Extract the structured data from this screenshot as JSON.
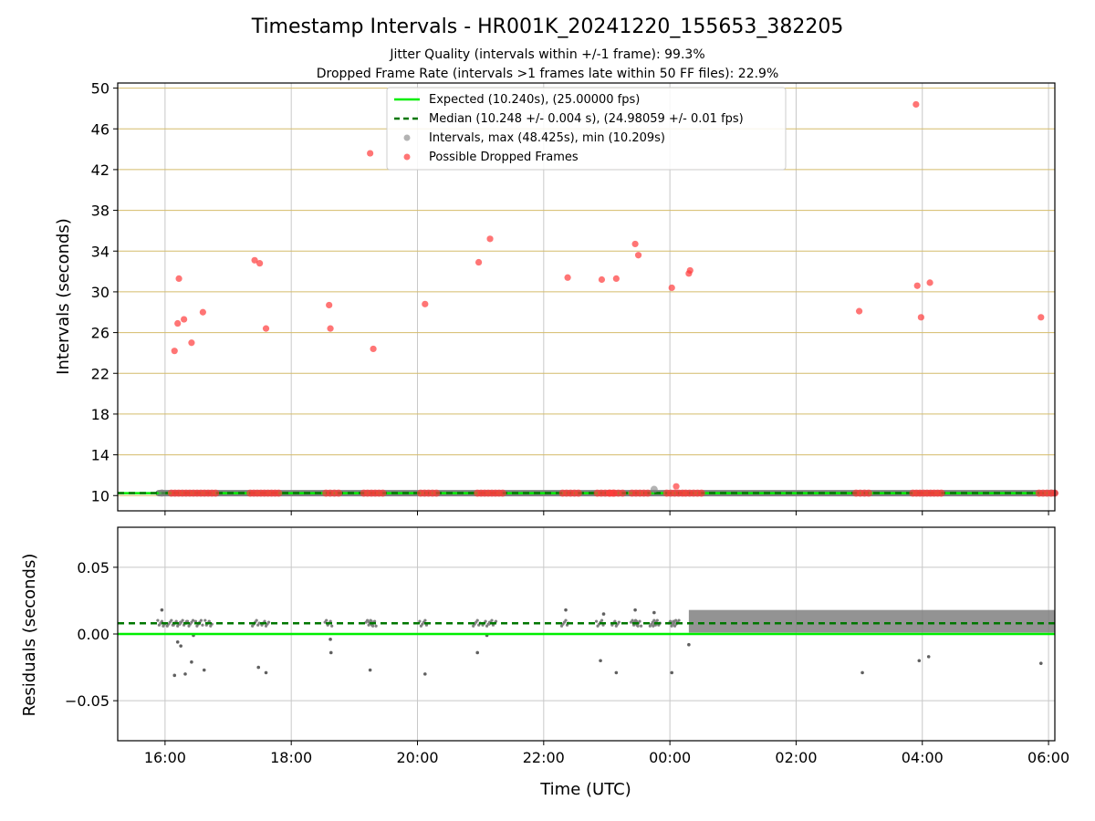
{
  "chart_data": {
    "type": "scatter",
    "title": "Timestamp Intervals - HR001K_20241220_155653_382205",
    "subtitle_lines": [
      "Jitter Quality (intervals within +/-1 frame): 99.3%",
      "Dropped Frame Rate (intervals >1 frames late within 50 FF files): 22.9%"
    ],
    "xlabel": "Time (UTC)",
    "x_ticks": [
      "16:00",
      "18:00",
      "20:00",
      "22:00",
      "00:00",
      "02:00",
      "04:00",
      "06:00"
    ],
    "x_range_hours": [
      15.25,
      30.1
    ],
    "top_panel": {
      "ylabel": "Intervals (seconds)",
      "ylim": [
        8.5,
        50.5
      ],
      "y_ticks": [
        10,
        14,
        18,
        22,
        26,
        30,
        34,
        38,
        42,
        46,
        50
      ],
      "grid": true,
      "legend_position": "upper-center",
      "legend": [
        "Expected (10.240s), (25.00000 fps)",
        "Median (10.248 +/- 0.004 s), (24.98059 +/- 0.01 fps)",
        "Intervals, max (48.425s), min (10.209s)",
        "Possible Dropped Frames"
      ],
      "expected": 10.24,
      "median": 10.248,
      "intervals_points": [
        [
          15.95,
          10.25
        ],
        [
          23.75,
          10.6
        ],
        [
          30.05,
          10.25
        ]
      ],
      "intervals_band": [
        15.9,
        30.1,
        10.24
      ],
      "dropped_points": [
        [
          16.15,
          24.2
        ],
        [
          16.2,
          26.9
        ],
        [
          16.22,
          31.3
        ],
        [
          16.3,
          27.3
        ],
        [
          16.42,
          25.0
        ],
        [
          16.6,
          28.0
        ],
        [
          17.42,
          33.1
        ],
        [
          17.5,
          32.8
        ],
        [
          17.6,
          26.4
        ],
        [
          18.6,
          28.7
        ],
        [
          18.62,
          26.4
        ],
        [
          19.25,
          43.6
        ],
        [
          19.3,
          24.4
        ],
        [
          20.12,
          28.8
        ],
        [
          20.97,
          32.9
        ],
        [
          21.15,
          35.2
        ],
        [
          22.38,
          31.4
        ],
        [
          22.92,
          31.2
        ],
        [
          23.15,
          31.3
        ],
        [
          23.45,
          34.7
        ],
        [
          23.5,
          33.6
        ],
        [
          24.03,
          30.4
        ],
        [
          24.1,
          10.9
        ],
        [
          24.3,
          31.8
        ],
        [
          24.32,
          32.1
        ],
        [
          27.0,
          28.1
        ],
        [
          27.9,
          48.4
        ],
        [
          27.92,
          30.6
        ],
        [
          27.98,
          27.5
        ],
        [
          28.12,
          30.9
        ],
        [
          29.88,
          27.5
        ]
      ],
      "dropped_clusters_at_10_24": [
        [
          16.1,
          16.8
        ],
        [
          17.35,
          17.8
        ],
        [
          18.55,
          18.75
        ],
        [
          19.15,
          19.45
        ],
        [
          20.05,
          20.3
        ],
        [
          20.95,
          21.35
        ],
        [
          22.3,
          22.55
        ],
        [
          22.85,
          23.1
        ],
        [
          23.05,
          23.25
        ],
        [
          23.4,
          23.65
        ],
        [
          23.95,
          24.2
        ],
        [
          24.25,
          24.5
        ],
        [
          26.95,
          27.15
        ],
        [
          27.85,
          28.3
        ],
        [
          29.85,
          30.1
        ]
      ]
    },
    "bottom_panel": {
      "ylabel": "Residuals (seconds)",
      "ylim": [
        -0.08,
        0.08
      ],
      "y_ticks": [
        0.05,
        0.0,
        -0.05
      ],
      "y_tick_labels": [
        "0.05",
        "0.00",
        "−0.05"
      ],
      "expected_residual": 0.0,
      "median_residual": 0.008,
      "outlier_points": [
        [
          15.95,
          0.018
        ],
        [
          16.15,
          -0.031
        ],
        [
          16.2,
          -0.006
        ],
        [
          16.25,
          -0.009
        ],
        [
          16.32,
          -0.03
        ],
        [
          16.42,
          -0.021
        ],
        [
          16.45,
          -0.001
        ],
        [
          16.62,
          -0.027
        ],
        [
          17.48,
          -0.025
        ],
        [
          17.6,
          -0.029
        ],
        [
          18.62,
          -0.004
        ],
        [
          18.63,
          -0.014
        ],
        [
          19.25,
          -0.027
        ],
        [
          20.12,
          -0.03
        ],
        [
          20.95,
          -0.014
        ],
        [
          21.1,
          -0.001
        ],
        [
          22.35,
          0.018
        ],
        [
          22.9,
          -0.02
        ],
        [
          22.95,
          0.015
        ],
        [
          23.15,
          -0.029
        ],
        [
          23.45,
          0.018
        ],
        [
          23.75,
          0.016
        ],
        [
          24.03,
          -0.029
        ],
        [
          24.3,
          -0.008
        ],
        [
          27.05,
          -0.029
        ],
        [
          27.95,
          -0.02
        ],
        [
          28.1,
          -0.017
        ],
        [
          29.88,
          -0.022
        ]
      ],
      "dense_band_range": [
        24.3,
        30.1
      ],
      "dense_band_residual_range": [
        0.001,
        0.018
      ]
    },
    "colors": {
      "expected": "#00ee00",
      "median": "#007700",
      "intervals": "#808080",
      "dropped": "#ff3b3b",
      "gold_grid": "#d4bc6a",
      "grid": "#c8c8c8"
    }
  }
}
